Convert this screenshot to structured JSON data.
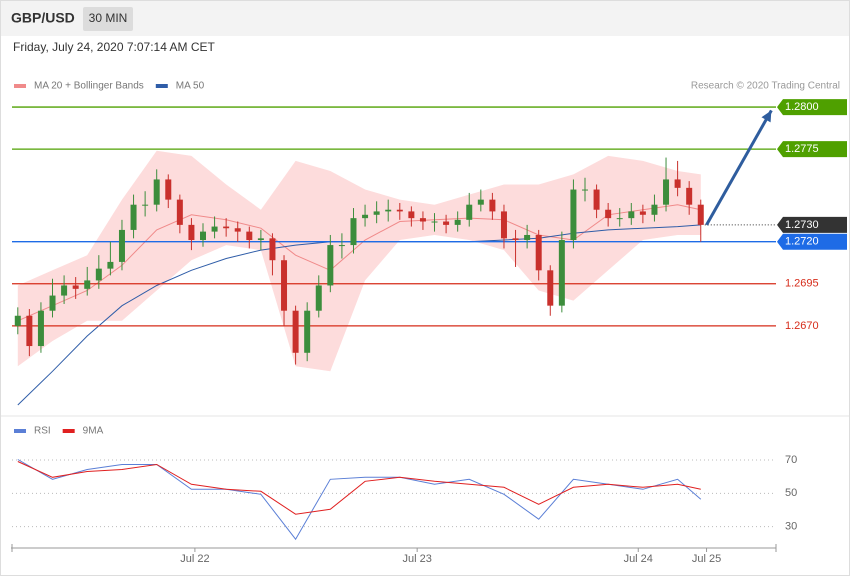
{
  "header": {
    "symbol": "GBP/USD",
    "interval": "30 MIN"
  },
  "timestamp": "Friday, July 24, 2020 7:07:14 AM CET",
  "credit": "Research © 2020 Trading Central",
  "chart_data": [
    {
      "type": "candlestick",
      "xlim": [
        -0.5,
        65.5
      ],
      "ylim": [
        1.262,
        1.2825
      ],
      "up_color": "#3c8d3c",
      "down_color": "#c9302c",
      "open": [
        1.267,
        1.2676,
        1.2658,
        1.2679,
        1.2688,
        1.2694,
        1.2692,
        1.2697,
        1.2704,
        1.2708,
        1.2727,
        1.2742,
        1.2742,
        1.2757,
        1.2745,
        1.273,
        1.2721,
        1.2726,
        1.2729,
        1.2728,
        1.2726,
        1.2721,
        1.2722,
        1.2709,
        1.2679,
        1.2654,
        1.2679,
        1.2694,
        1.2718,
        1.2718,
        1.2734,
        1.2736,
        1.2738,
        1.2739,
        1.2738,
        1.2734,
        1.2732,
        1.2732,
        1.273,
        1.2733,
        1.2742,
        1.2745,
        1.2738,
        1.2722,
        1.2721,
        1.2724,
        1.2703,
        1.2682,
        1.2721,
        1.2751,
        1.2751,
        1.2739,
        1.2734,
        1.2734,
        1.2738,
        1.2736,
        1.2742,
        1.2757,
        1.2752,
        1.2742
      ],
      "high": [
        1.2681,
        1.268,
        1.2684,
        1.2698,
        1.27,
        1.2699,
        1.2705,
        1.2712,
        1.272,
        1.2733,
        1.2748,
        1.275,
        1.2763,
        1.276,
        1.2748,
        1.2734,
        1.2731,
        1.2735,
        1.2734,
        1.2732,
        1.2729,
        1.2727,
        1.2725,
        1.2712,
        1.2682,
        1.2684,
        1.27,
        1.2724,
        1.2725,
        1.274,
        1.2742,
        1.2744,
        1.2745,
        1.2743,
        1.2741,
        1.2738,
        1.2737,
        1.2736,
        1.2738,
        1.2749,
        1.2751,
        1.2749,
        1.2742,
        1.2727,
        1.273,
        1.2727,
        1.2706,
        1.2726,
        1.2757,
        1.2758,
        1.2754,
        1.2743,
        1.274,
        1.2743,
        1.2742,
        1.2748,
        1.277,
        1.2768,
        1.2756,
        1.2745
      ],
      "low": [
        1.2665,
        1.2652,
        1.2654,
        1.2675,
        1.2683,
        1.2686,
        1.2688,
        1.2692,
        1.27,
        1.2703,
        1.2722,
        1.2735,
        1.2738,
        1.274,
        1.2725,
        1.2715,
        1.2717,
        1.2722,
        1.2723,
        1.272,
        1.2716,
        1.2715,
        1.27,
        1.267,
        1.2647,
        1.2649,
        1.2675,
        1.269,
        1.271,
        1.2713,
        1.2729,
        1.2731,
        1.2732,
        1.2733,
        1.2729,
        1.2727,
        1.2726,
        1.2725,
        1.2726,
        1.2729,
        1.2738,
        1.2733,
        1.2716,
        1.2705,
        1.2716,
        1.2697,
        1.2676,
        1.2678,
        1.2716,
        1.2744,
        1.2734,
        1.2729,
        1.2729,
        1.273,
        1.2731,
        1.2732,
        1.2738,
        1.2747,
        1.2736,
        1.272
      ],
      "close": [
        1.2676,
        1.2658,
        1.2679,
        1.2688,
        1.2694,
        1.2692,
        1.2697,
        1.2704,
        1.2708,
        1.2727,
        1.2742,
        1.2742,
        1.2757,
        1.2745,
        1.273,
        1.2721,
        1.2726,
        1.2729,
        1.2728,
        1.2726,
        1.2721,
        1.2722,
        1.2709,
        1.2679,
        1.2654,
        1.2679,
        1.2694,
        1.2718,
        1.2718,
        1.2734,
        1.2736,
        1.2738,
        1.2739,
        1.2738,
        1.2734,
        1.2732,
        1.2732,
        1.273,
        1.2733,
        1.2742,
        1.2745,
        1.2738,
        1.2722,
        1.2721,
        1.2724,
        1.2703,
        1.2682,
        1.2721,
        1.2751,
        1.2751,
        1.2739,
        1.2734,
        1.2734,
        1.2738,
        1.2736,
        1.2742,
        1.2757,
        1.2752,
        1.2742,
        1.273
      ],
      "overlays": [
        {
          "name": "MA 20 + Bollinger Bands",
          "color": "#f08a8a",
          "band_color": "#fddcdc",
          "x": [
            0,
            3,
            6,
            9,
            12,
            15,
            18,
            21,
            24,
            27,
            30,
            33,
            36,
            39,
            42,
            45,
            48,
            51,
            54,
            57,
            59
          ],
          "values": [
            1.2673,
            1.2682,
            1.2691,
            1.2706,
            1.2727,
            1.2736,
            1.2733,
            1.2728,
            1.2712,
            1.2703,
            1.2721,
            1.2732,
            1.2733,
            1.2734,
            1.2733,
            1.2724,
            1.2721,
            1.2736,
            1.2739,
            1.2742,
            1.2739
          ],
          "upper": [
            1.2694,
            1.2703,
            1.2712,
            1.2745,
            1.2774,
            1.2771,
            1.2754,
            1.2739,
            1.2768,
            1.2762,
            1.2751,
            1.2745,
            1.2742,
            1.2748,
            1.2754,
            1.2754,
            1.276,
            1.2771,
            1.2768,
            1.2762,
            1.276
          ],
          "lower": [
            1.2646,
            1.2661,
            1.2673,
            1.2673,
            1.2691,
            1.2709,
            1.2718,
            1.2715,
            1.2646,
            1.2643,
            1.2697,
            1.2721,
            1.2724,
            1.2721,
            1.2715,
            1.2691,
            1.2685,
            1.2703,
            1.2721,
            1.2724,
            1.2724
          ]
        },
        {
          "name": "MA 50",
          "color": "#2f5da8",
          "x": [
            0,
            3,
            6,
            9,
            12,
            15,
            18,
            21,
            24,
            27,
            30,
            33,
            36,
            39,
            42,
            45,
            48,
            51,
            54,
            57,
            59
          ],
          "values": [
            1.2623,
            1.2643,
            1.2664,
            1.2682,
            1.2694,
            1.2703,
            1.271,
            1.2715,
            1.2718,
            1.272,
            1.272,
            1.272,
            1.272,
            1.272,
            1.2721,
            1.2722,
            1.2725,
            1.2727,
            1.2728,
            1.2729,
            1.273
          ]
        }
      ],
      "levels": [
        {
          "value": 1.28,
          "label": "1.2800",
          "color": "#4fa000",
          "boxed": true,
          "style": "solid"
        },
        {
          "value": 1.2775,
          "label": "1.2775",
          "color": "#4fa000",
          "boxed": true,
          "style": "solid"
        },
        {
          "value": 1.273,
          "label": "1.2730",
          "color": "#333333",
          "boxed": true,
          "style": "dotted"
        },
        {
          "value": 1.272,
          "label": "1.2720",
          "color": "#1e6be6",
          "boxed": true,
          "style": "solid"
        },
        {
          "value": 1.2695,
          "label": "1.2695",
          "color": "#d62c1a",
          "boxed": false,
          "style": "solid"
        },
        {
          "value": 1.267,
          "label": "1.2670",
          "color": "#d62c1a",
          "boxed": false,
          "style": "solid"
        }
      ],
      "forecast": {
        "x": [
          59.5,
          65.1
        ],
        "values": [
          1.273,
          1.2798
        ],
        "color": "#2f5d9e"
      }
    },
    {
      "type": "line",
      "xlim": [
        -0.5,
        65.5
      ],
      "ylim": [
        19,
        79
      ],
      "yticks": [
        70,
        50,
        30
      ],
      "xticks": [
        {
          "value": 15.3,
          "label": "Jul 22"
        },
        {
          "value": 34.5,
          "label": "Jul 23"
        },
        {
          "value": 53.6,
          "label": "Jul 24"
        },
        {
          "value": 59.5,
          "label": "Jul 25"
        }
      ],
      "x": [
        0,
        3,
        6,
        9,
        12,
        15,
        18,
        21,
        24,
        27,
        30,
        33,
        36,
        39,
        42,
        45,
        48,
        51,
        54,
        57,
        59
      ],
      "series": [
        {
          "name": "RSI",
          "color": "#5b7fd6",
          "values": [
            70.3,
            58.4,
            64.3,
            67.3,
            67.3,
            52.4,
            52.4,
            49.4,
            22.5,
            58.4,
            59.6,
            59.6,
            55.4,
            58.4,
            49.4,
            34.5,
            58.4,
            55.4,
            52.4,
            58.4,
            46.4
          ]
        },
        {
          "name": "9MA",
          "color": "#e02020",
          "values": [
            69.1,
            59.6,
            63.1,
            64.3,
            67.3,
            55.4,
            52.4,
            51.2,
            37.5,
            40.4,
            57.2,
            59.6,
            57.2,
            55.4,
            53.6,
            43.4,
            53.6,
            55.4,
            53.6,
            55.4,
            52.4
          ]
        }
      ]
    }
  ]
}
